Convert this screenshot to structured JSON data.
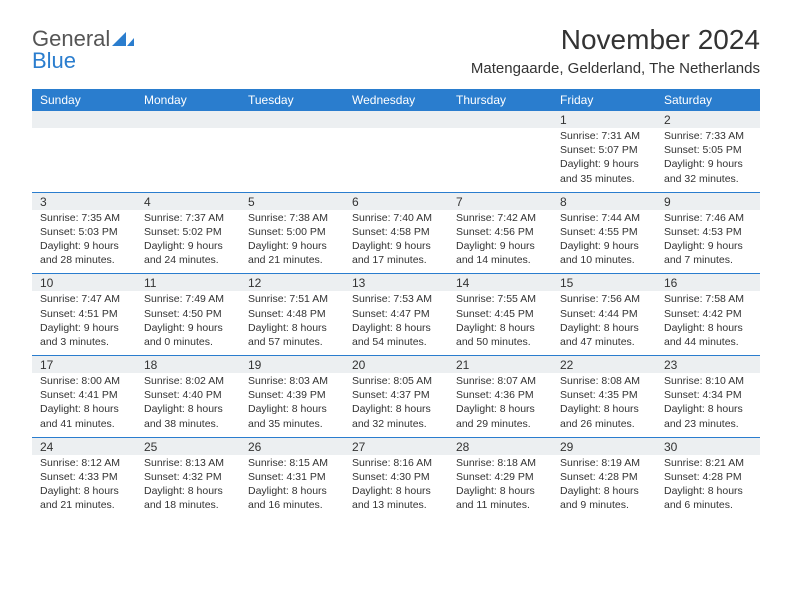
{
  "brand": {
    "word1": "General",
    "word2": "Blue"
  },
  "title": "November 2024",
  "location": "Matengaarde, Gelderland, The Netherlands",
  "colors": {
    "header_bg": "#2a7dce",
    "header_fg": "#ffffff",
    "daynum_bg": "#eceff1",
    "divider": "#2a7dce",
    "text": "#333333",
    "brand_gray": "#555555",
    "brand_blue": "#2a7dce"
  },
  "typography": {
    "title_fontsize": 28,
    "location_fontsize": 15,
    "header_fontsize": 12,
    "cell_fontsize": 10.5
  },
  "day_names": [
    "Sunday",
    "Monday",
    "Tuesday",
    "Wednesday",
    "Thursday",
    "Friday",
    "Saturday"
  ],
  "weeks": [
    [
      null,
      null,
      null,
      null,
      null,
      {
        "n": "1",
        "sunrise": "7:31 AM",
        "sunset": "5:07 PM",
        "dl1": "Daylight: 9 hours",
        "dl2": "and 35 minutes."
      },
      {
        "n": "2",
        "sunrise": "7:33 AM",
        "sunset": "5:05 PM",
        "dl1": "Daylight: 9 hours",
        "dl2": "and 32 minutes."
      }
    ],
    [
      {
        "n": "3",
        "sunrise": "7:35 AM",
        "sunset": "5:03 PM",
        "dl1": "Daylight: 9 hours",
        "dl2": "and 28 minutes."
      },
      {
        "n": "4",
        "sunrise": "7:37 AM",
        "sunset": "5:02 PM",
        "dl1": "Daylight: 9 hours",
        "dl2": "and 24 minutes."
      },
      {
        "n": "5",
        "sunrise": "7:38 AM",
        "sunset": "5:00 PM",
        "dl1": "Daylight: 9 hours",
        "dl2": "and 21 minutes."
      },
      {
        "n": "6",
        "sunrise": "7:40 AM",
        "sunset": "4:58 PM",
        "dl1": "Daylight: 9 hours",
        "dl2": "and 17 minutes."
      },
      {
        "n": "7",
        "sunrise": "7:42 AM",
        "sunset": "4:56 PM",
        "dl1": "Daylight: 9 hours",
        "dl2": "and 14 minutes."
      },
      {
        "n": "8",
        "sunrise": "7:44 AM",
        "sunset": "4:55 PM",
        "dl1": "Daylight: 9 hours",
        "dl2": "and 10 minutes."
      },
      {
        "n": "9",
        "sunrise": "7:46 AM",
        "sunset": "4:53 PM",
        "dl1": "Daylight: 9 hours",
        "dl2": "and 7 minutes."
      }
    ],
    [
      {
        "n": "10",
        "sunrise": "7:47 AM",
        "sunset": "4:51 PM",
        "dl1": "Daylight: 9 hours",
        "dl2": "and 3 minutes."
      },
      {
        "n": "11",
        "sunrise": "7:49 AM",
        "sunset": "4:50 PM",
        "dl1": "Daylight: 9 hours",
        "dl2": "and 0 minutes."
      },
      {
        "n": "12",
        "sunrise": "7:51 AM",
        "sunset": "4:48 PM",
        "dl1": "Daylight: 8 hours",
        "dl2": "and 57 minutes."
      },
      {
        "n": "13",
        "sunrise": "7:53 AM",
        "sunset": "4:47 PM",
        "dl1": "Daylight: 8 hours",
        "dl2": "and 54 minutes."
      },
      {
        "n": "14",
        "sunrise": "7:55 AM",
        "sunset": "4:45 PM",
        "dl1": "Daylight: 8 hours",
        "dl2": "and 50 minutes."
      },
      {
        "n": "15",
        "sunrise": "7:56 AM",
        "sunset": "4:44 PM",
        "dl1": "Daylight: 8 hours",
        "dl2": "and 47 minutes."
      },
      {
        "n": "16",
        "sunrise": "7:58 AM",
        "sunset": "4:42 PM",
        "dl1": "Daylight: 8 hours",
        "dl2": "and 44 minutes."
      }
    ],
    [
      {
        "n": "17",
        "sunrise": "8:00 AM",
        "sunset": "4:41 PM",
        "dl1": "Daylight: 8 hours",
        "dl2": "and 41 minutes."
      },
      {
        "n": "18",
        "sunrise": "8:02 AM",
        "sunset": "4:40 PM",
        "dl1": "Daylight: 8 hours",
        "dl2": "and 38 minutes."
      },
      {
        "n": "19",
        "sunrise": "8:03 AM",
        "sunset": "4:39 PM",
        "dl1": "Daylight: 8 hours",
        "dl2": "and 35 minutes."
      },
      {
        "n": "20",
        "sunrise": "8:05 AM",
        "sunset": "4:37 PM",
        "dl1": "Daylight: 8 hours",
        "dl2": "and 32 minutes."
      },
      {
        "n": "21",
        "sunrise": "8:07 AM",
        "sunset": "4:36 PM",
        "dl1": "Daylight: 8 hours",
        "dl2": "and 29 minutes."
      },
      {
        "n": "22",
        "sunrise": "8:08 AM",
        "sunset": "4:35 PM",
        "dl1": "Daylight: 8 hours",
        "dl2": "and 26 minutes."
      },
      {
        "n": "23",
        "sunrise": "8:10 AM",
        "sunset": "4:34 PM",
        "dl1": "Daylight: 8 hours",
        "dl2": "and 23 minutes."
      }
    ],
    [
      {
        "n": "24",
        "sunrise": "8:12 AM",
        "sunset": "4:33 PM",
        "dl1": "Daylight: 8 hours",
        "dl2": "and 21 minutes."
      },
      {
        "n": "25",
        "sunrise": "8:13 AM",
        "sunset": "4:32 PM",
        "dl1": "Daylight: 8 hours",
        "dl2": "and 18 minutes."
      },
      {
        "n": "26",
        "sunrise": "8:15 AM",
        "sunset": "4:31 PM",
        "dl1": "Daylight: 8 hours",
        "dl2": "and 16 minutes."
      },
      {
        "n": "27",
        "sunrise": "8:16 AM",
        "sunset": "4:30 PM",
        "dl1": "Daylight: 8 hours",
        "dl2": "and 13 minutes."
      },
      {
        "n": "28",
        "sunrise": "8:18 AM",
        "sunset": "4:29 PM",
        "dl1": "Daylight: 8 hours",
        "dl2": "and 11 minutes."
      },
      {
        "n": "29",
        "sunrise": "8:19 AM",
        "sunset": "4:28 PM",
        "dl1": "Daylight: 8 hours",
        "dl2": "and 9 minutes."
      },
      {
        "n": "30",
        "sunrise": "8:21 AM",
        "sunset": "4:28 PM",
        "dl1": "Daylight: 8 hours",
        "dl2": "and 6 minutes."
      }
    ]
  ],
  "labels": {
    "sunrise_prefix": "Sunrise: ",
    "sunset_prefix": "Sunset: "
  }
}
